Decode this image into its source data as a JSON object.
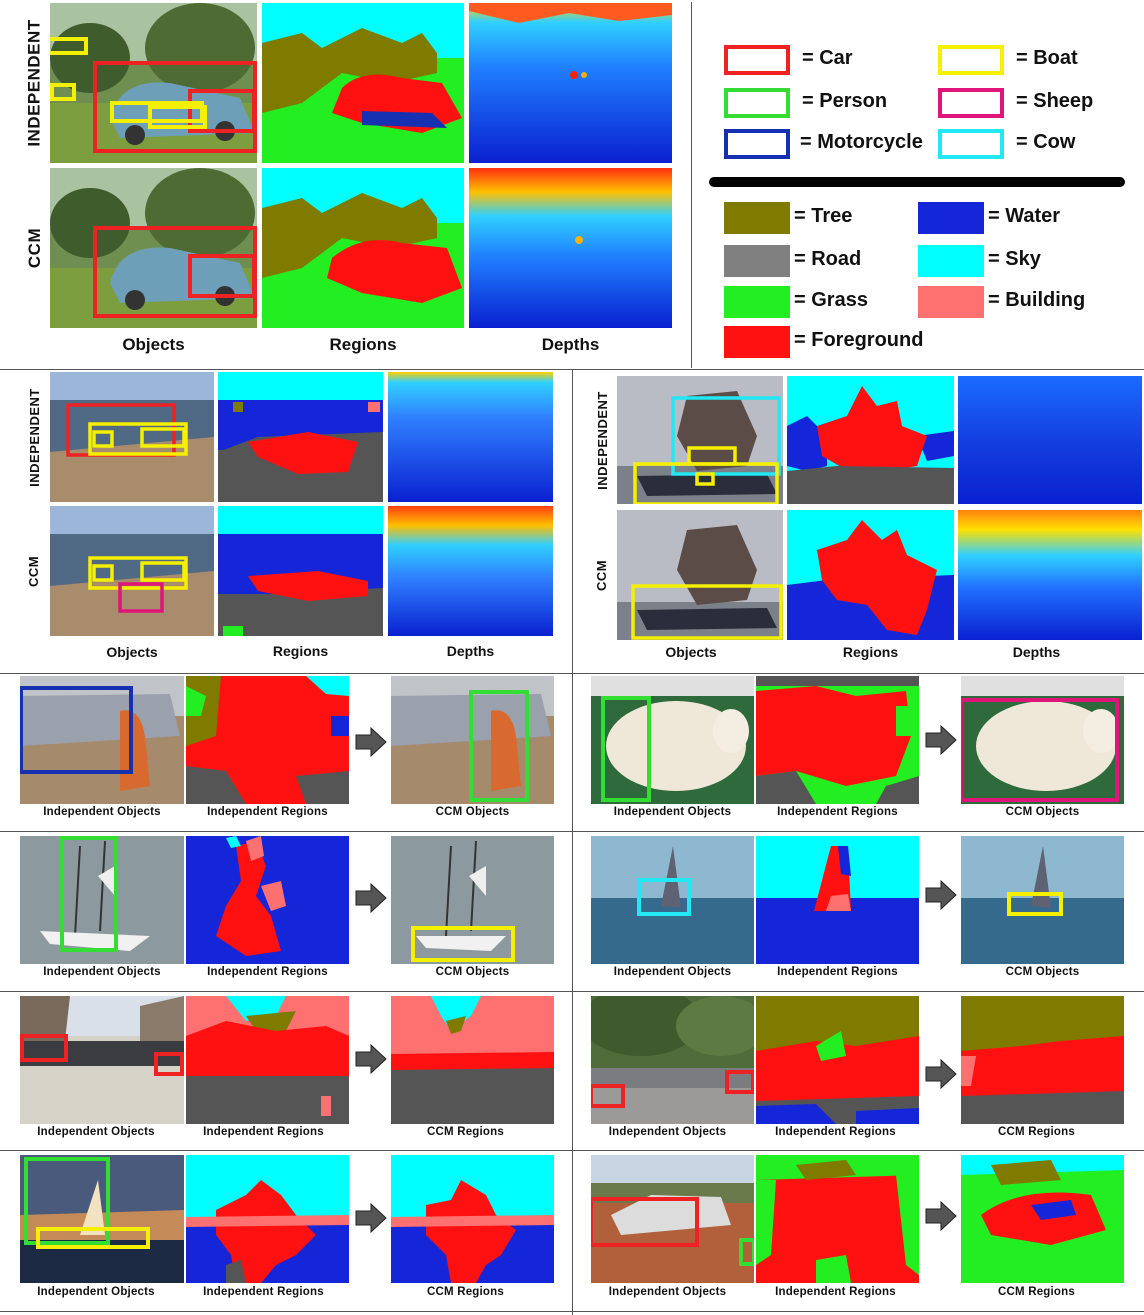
{
  "colors": {
    "car": "#ee2222",
    "person": "#33dd33",
    "motorcycle": "#1530b0",
    "boat": "#f5f000",
    "sheep": "#e0157a",
    "cow": "#22e8f5",
    "tree": "#7f7a00",
    "road": "#808080",
    "grass": "#22ee22",
    "foreground": "#ff1111",
    "water": "#1525d8",
    "sky": "#00ffff",
    "building": "#ff7070"
  },
  "legend": {
    "objects": [
      {
        "label": "= Car",
        "key": "car"
      },
      {
        "label": "= Boat",
        "key": "boat"
      },
      {
        "label": "= Person",
        "key": "person"
      },
      {
        "label": "= Sheep",
        "key": "sheep"
      },
      {
        "label": "= Motorcycle",
        "key": "motorcycle"
      },
      {
        "label": "= Cow",
        "key": "cow"
      }
    ],
    "regions": [
      {
        "label": "= Tree",
        "key": "tree"
      },
      {
        "label": "= Water",
        "key": "water"
      },
      {
        "label": "= Road",
        "key": "road"
      },
      {
        "label": "= Sky",
        "key": "sky"
      },
      {
        "label": "= Grass",
        "key": "grass"
      },
      {
        "label": "= Building",
        "key": "building"
      },
      {
        "label": "= Foreground",
        "key": "foreground"
      }
    ]
  },
  "row_labels": {
    "independent": "INDEPENDENT",
    "ccm": "CCM"
  },
  "column_labels": {
    "objects": "Objects",
    "regions": "Regions",
    "depths": "Depths"
  },
  "pair_labels": {
    "independent_objects": "Independent Objects",
    "independent_regions": "Independent Regions",
    "ccm_objects": "CCM Objects",
    "ccm_regions": "CCM Regions"
  },
  "icons": {
    "arrow": "right-arrow-icon"
  }
}
